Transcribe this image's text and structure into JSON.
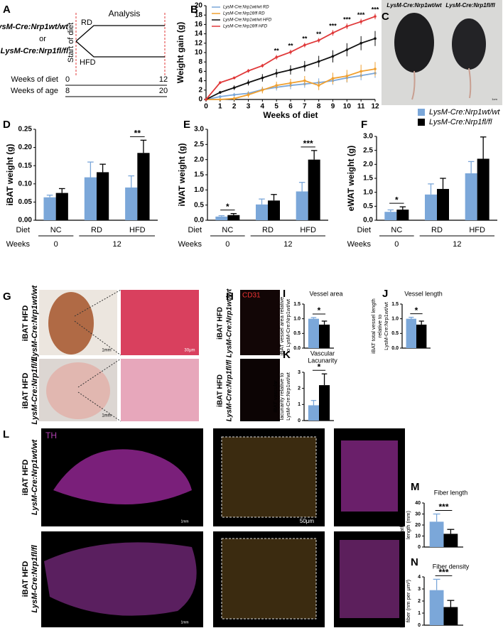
{
  "panel_labels": [
    "A",
    "B",
    "C",
    "D",
    "E",
    "F",
    "G",
    "H",
    "I",
    "J",
    "K",
    "L",
    "M",
    "N"
  ],
  "design": {
    "analysis": "Analysis",
    "genotype_wt": "LysM-Cre:Nrp1wt/wt",
    "or": "or",
    "genotype_fl": "LysM-Cre:Nrp1fl/fl",
    "start": "Start of diet",
    "rd": "RD",
    "hfd": "HFD",
    "weeks_of_diet": "Weeks of diet",
    "weeks_of_age": "Weeks of age",
    "diet_weeks": [
      0,
      12
    ],
    "age_weeks": [
      8,
      20
    ]
  },
  "photo": {
    "labels": [
      "LysM-Cre:Nrp1wt/wt",
      "LysM-Cre:Nrp1fl/fl"
    ],
    "scale": "1cm"
  },
  "histology": {
    "rows": [
      {
        "tissue": "iBAT HFD",
        "genotype": "LysM-Cre:Nrp1wt/wt"
      },
      {
        "tissue": "iBAT HFD",
        "genotype": "LysM-Cre:Nrp1fl/fl"
      }
    ],
    "g_scales": [
      "1mm",
      "30μm",
      "1mm"
    ],
    "h_stain": "CD31"
  },
  "th_imaging": {
    "stain": "TH",
    "scales": [
      "1mm",
      "50μm",
      "1mm"
    ]
  },
  "legend": [
    {
      "name": "LysM-Cre:Nrp1wt/wt",
      "color": "#7ba7d9"
    },
    {
      "name": "LysM-Cre:Nrp1fl/fl",
      "color": "#000000"
    }
  ],
  "chart_data": [
    {
      "type": "line",
      "xlabel": "Weeks of diet",
      "ylabel": "Weight gain (g)",
      "x": [
        0,
        1,
        2,
        3,
        4,
        5,
        6,
        7,
        8,
        9,
        10,
        11,
        12
      ],
      "xlim": [
        0,
        12
      ],
      "xticks": [
        0,
        1,
        2,
        3,
        4,
        5,
        6,
        7,
        8,
        9,
        10,
        11,
        12
      ],
      "ylim": [
        0,
        20
      ],
      "yticks": [
        0,
        2,
        4,
        6,
        8,
        10,
        12,
        14,
        16,
        18,
        20
      ],
      "series": [
        {
          "name": "LysM-Cre:Nrp1wt/wt RD",
          "color": "#7ba7d9",
          "values": [
            0,
            0.6,
            1,
            1.3,
            2.1,
            2.6,
            3,
            3.3,
            3.6,
            4,
            4.6,
            5.1,
            5.6
          ],
          "errors": [
            0,
            0.3,
            0.4,
            0.5,
            0.6,
            0.7,
            0.8,
            0.8,
            0.9,
            0.9,
            1,
            1,
            1
          ]
        },
        {
          "name": "LysM-Cre:Nrp1fl/fl RD",
          "color": "#f0a030",
          "values": [
            0,
            0,
            0.2,
            1,
            2,
            3,
            3.5,
            4,
            3,
            4.5,
            5,
            6,
            6.5
          ],
          "errors": [
            0,
            0.2,
            0.4,
            0.6,
            0.7,
            0.8,
            0.9,
            1,
            1,
            1.2,
            1.3,
            1.4,
            1.5
          ]
        },
        {
          "name": "LysM-Cre:Nrp1wt/wt HFD",
          "color": "#111111",
          "values": [
            0,
            1.5,
            2.5,
            3.6,
            4.6,
            5.6,
            6.3,
            7.1,
            8.1,
            9.2,
            10.6,
            12,
            13
          ],
          "errors": [
            0,
            0.3,
            0.5,
            0.6,
            0.8,
            0.9,
            1,
            1.1,
            1.2,
            1.3,
            1.4,
            1.5,
            1.6
          ]
        },
        {
          "name": "LysM-Cre:Nrp1fl/fl HFD",
          "color": "#e0393a",
          "values": [
            0,
            3.6,
            4.6,
            6.1,
            7.2,
            9,
            10.1,
            11.6,
            12.6,
            14.2,
            15.6,
            16.6,
            17.7
          ],
          "errors": [
            0,
            0.3,
            0.3,
            0.4,
            0.4,
            0.5,
            0.5,
            0.5,
            0.5,
            0.6,
            0.6,
            0.6,
            0.6
          ]
        }
      ],
      "significance": [
        {
          "x": 5,
          "label": "**"
        },
        {
          "x": 6,
          "label": "**"
        },
        {
          "x": 7,
          "label": "**"
        },
        {
          "x": 8,
          "label": "**"
        },
        {
          "x": 9,
          "label": "***"
        },
        {
          "x": 10,
          "label": "***"
        },
        {
          "x": 11,
          "label": "***"
        },
        {
          "x": 12,
          "label": "***"
        }
      ]
    },
    {
      "type": "bar",
      "ylabel": "iBAT weight (g)",
      "categories": [
        "NC",
        "RD",
        "HFD"
      ],
      "diet_label": "Diet",
      "weeks_label": "Weeks",
      "weeks": [
        0,
        12
      ],
      "ylim": [
        0,
        0.25
      ],
      "yticks": [
        {
          "value": 0,
          "label": "0.00"
        },
        {
          "value": 0.05,
          "label": "0.05"
        },
        {
          "value": 0.1,
          "label": "0.10"
        },
        {
          "value": 0.15,
          "label": "0.15"
        },
        {
          "value": 0.2,
          "label": "0.20"
        },
        {
          "value": 0.25,
          "label": "0.25"
        }
      ],
      "series": [
        {
          "color": "#7ba7d9",
          "values": [
            0.063,
            0.118,
            0.09
          ],
          "errors": [
            0.006,
            0.042,
            0.032
          ]
        },
        {
          "color": "#000000",
          "values": [
            0.075,
            0.132,
            0.185
          ],
          "errors": [
            0.012,
            0.022,
            0.035
          ]
        }
      ],
      "significance": [
        {
          "index": 2,
          "label": "**"
        }
      ]
    },
    {
      "type": "bar",
      "ylabel": "iWAT weight (g)",
      "categories": [
        "NC",
        "RD",
        "HFD"
      ],
      "diet_label": "Diet",
      "weeks_label": "Weeks",
      "weeks": [
        0,
        12
      ],
      "ylim": [
        0,
        3
      ],
      "yticks": [
        {
          "value": 0,
          "label": "0.0"
        },
        0.5,
        {
          "value": 1,
          "label": "1.0"
        },
        1.5,
        {
          "value": 2,
          "label": "2.0"
        },
        2.5,
        {
          "value": 3,
          "label": "3.0"
        }
      ],
      "series": [
        {
          "color": "#7ba7d9",
          "values": [
            0.12,
            0.52,
            0.95
          ],
          "errors": [
            0.03,
            0.18,
            0.3
          ]
        },
        {
          "color": "#000000",
          "values": [
            0.17,
            0.65,
            2.0
          ],
          "errors": [
            0.05,
            0.2,
            0.3
          ]
        }
      ],
      "significance": [
        {
          "index": 0,
          "label": "*"
        },
        {
          "index": 2,
          "label": "***"
        }
      ]
    },
    {
      "type": "bar",
      "ylabel": "eWAT weight (g)",
      "categories": [
        "NC",
        "RD",
        "HFD"
      ],
      "diet_label": "Diet",
      "weeks_label": "Weeks",
      "weeks": [
        0,
        12
      ],
      "ylim": [
        0,
        3
      ],
      "yticks": [
        {
          "value": 0,
          "label": "0.0"
        },
        0.5,
        {
          "value": 1,
          "label": "1.0"
        },
        1.5,
        {
          "value": 2,
          "label": "2.0"
        },
        2.5,
        {
          "value": 3,
          "label": "3.0"
        }
      ],
      "series": [
        {
          "color": "#7ba7d9",
          "values": [
            0.3,
            0.92,
            1.68
          ],
          "errors": [
            0.07,
            0.38,
            0.42
          ]
        },
        {
          "color": "#000000",
          "values": [
            0.38,
            1.12,
            2.2
          ],
          "errors": [
            0.1,
            0.38,
            0.78
          ]
        }
      ],
      "significance": [
        {
          "index": 0,
          "label": "*"
        }
      ]
    },
    {
      "type": "bar",
      "title": "Vessel area",
      "ylabel": [
        "iBAT vessel area relative",
        "to LysM-Cre:Nrp1wt/wt"
      ],
      "ylim": [
        0,
        1.5
      ],
      "yticks": [
        {
          "value": 0,
          "label": "0.0"
        },
        0.5,
        {
          "value": 1,
          "label": "1.0"
        },
        1.5
      ],
      "series": [
        {
          "color": "#7ba7d9",
          "values": [
            1.0
          ],
          "errors": [
            0.04
          ]
        },
        {
          "color": "#000000",
          "values": [
            0.8
          ],
          "errors": [
            0.12
          ]
        }
      ],
      "significance": "*"
    },
    {
      "type": "bar",
      "title": "Vessel length",
      "ylabel": [
        "iBAT total vessel length",
        "relative to",
        "LysM-Cre:Nrp1wt/wt"
      ],
      "ylim": [
        0,
        1.5
      ],
      "yticks": [
        {
          "value": 0,
          "label": "0.0"
        },
        0.5,
        {
          "value": 1,
          "label": "1.0"
        },
        1.5
      ],
      "series": [
        {
          "color": "#7ba7d9",
          "values": [
            1.0
          ],
          "errors": [
            0.05
          ]
        },
        {
          "color": "#000000",
          "values": [
            0.8
          ],
          "errors": [
            0.12
          ]
        }
      ],
      "significance": "*"
    },
    {
      "type": "bar",
      "title": [
        "Vascular",
        "Lacunarity"
      ],
      "ylabel": [
        "iBAT vascular",
        "lacunarity relative to",
        "LysM-Cre:Nrp1wt/wt"
      ],
      "ylim": [
        0,
        3
      ],
      "yticks": [
        0,
        1,
        2,
        3
      ],
      "series": [
        {
          "color": "#7ba7d9",
          "values": [
            0.95
          ],
          "errors": [
            0.3
          ]
        },
        {
          "color": "#000000",
          "values": [
            2.2
          ],
          "errors": [
            0.7
          ]
        }
      ],
      "significance": "*"
    },
    {
      "type": "bar",
      "title": "Fiber length",
      "ylabel": [
        "Sympathetic fiber",
        "length (mm)"
      ],
      "ylim": [
        0,
        40
      ],
      "yticks": [
        0,
        10,
        20,
        30,
        40
      ],
      "series": [
        {
          "color": "#7ba7d9",
          "values": [
            23
          ],
          "errors": [
            7
          ]
        },
        {
          "color": "#000000",
          "values": [
            12
          ],
          "errors": [
            4
          ]
        }
      ],
      "significance": "***"
    },
    {
      "type": "bar",
      "title": "Fiber density",
      "ylabel": [
        "Density of sympathetic",
        "fiber (nm per μm³)"
      ],
      "ylim": [
        0,
        4
      ],
      "yticks": [
        0,
        1,
        2,
        3,
        4
      ],
      "series": [
        {
          "color": "#7ba7d9",
          "values": [
            2.9
          ],
          "errors": [
            0.9
          ]
        },
        {
          "color": "#000000",
          "values": [
            1.5
          ],
          "errors": [
            0.55
          ]
        }
      ],
      "significance": "***"
    }
  ]
}
